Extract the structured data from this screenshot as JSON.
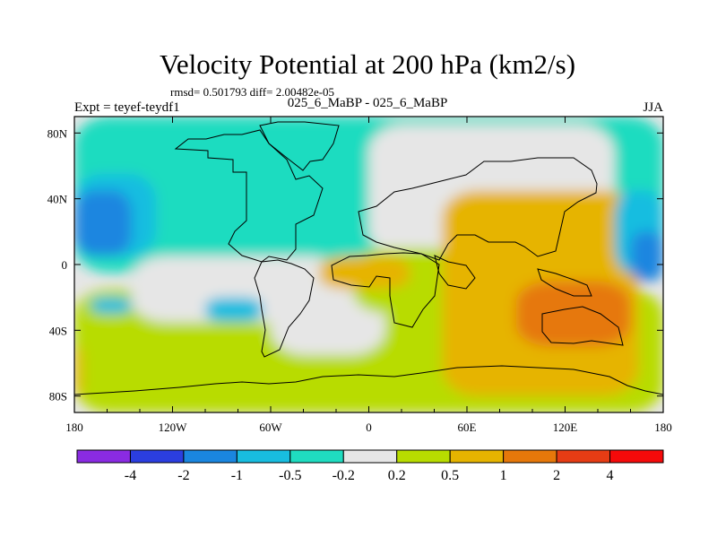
{
  "chart_data": {
    "type": "heatmap",
    "title": "Velocity Potential at 200 hPa (km2/s)",
    "stats": "rmsd= 0.501793 diff= 2.00482e-05",
    "left_label": "Expt = teyef-teydf1",
    "center_label": "025_6_MaBP - 025_6_MaBP",
    "season": "JJA",
    "xlabel": "",
    "ylabel": "",
    "xlim": [
      -180,
      180
    ],
    "ylim": [
      -90,
      90
    ],
    "x_ticks": [
      {
        "value": -180,
        "label": "180"
      },
      {
        "value": -120,
        "label": "120W"
      },
      {
        "value": -60,
        "label": "60W"
      },
      {
        "value": 0,
        "label": "0"
      },
      {
        "value": 60,
        "label": "60E"
      },
      {
        "value": 120,
        "label": "120E"
      },
      {
        "value": 180,
        "label": "180"
      }
    ],
    "y_ticks": [
      {
        "value": 80,
        "label": "80N"
      },
      {
        "value": 40,
        "label": "40N"
      },
      {
        "value": 0,
        "label": "0"
      },
      {
        "value": -40,
        "label": "40S"
      },
      {
        "value": -80,
        "label": "80S"
      }
    ],
    "levels": [
      -4,
      -2,
      -1,
      -0.5,
      -0.2,
      0.2,
      0.5,
      1,
      2,
      4
    ],
    "level_labels": [
      "-4",
      "-2",
      "-1",
      "-0.5",
      "-0.2",
      "0.2",
      "0.5",
      "1",
      "2",
      "4"
    ],
    "colors": [
      "#8a2be2",
      "#2b3ee0",
      "#1a86e0",
      "#18bde0",
      "#1fdcc0",
      "#e6e6e6",
      "#b8dc00",
      "#e6b400",
      "#e6780a",
      "#e63c14",
      "#f50a0a"
    ],
    "regions": [
      {
        "name": "south-tropical-band",
        "level_index": 6,
        "lon": [
          -180,
          180
        ],
        "lat": [
          -90,
          -15
        ]
      },
      {
        "name": "north-high-latitude",
        "level_index": 4,
        "lon": [
          -180,
          180
        ],
        "lat": [
          -5,
          90
        ]
      },
      {
        "name": "pacific-east-band",
        "level_index": 5,
        "lon": [
          -145,
          -15
        ],
        "lat": [
          -35,
          5
        ]
      },
      {
        "name": "atlantic-arc",
        "level_index": 5,
        "lon": [
          -60,
          10
        ],
        "lat": [
          -55,
          -10
        ]
      },
      {
        "name": "asia-neutral",
        "level_index": 5,
        "lon": [
          0,
          150
        ],
        "lat": [
          5,
          85
        ]
      },
      {
        "name": "arabia-positive",
        "level_index": 6,
        "lon": [
          -10,
          60
        ],
        "lat": [
          -30,
          10
        ]
      },
      {
        "name": "sahara-orange",
        "level_index": 7,
        "lon": [
          -30,
          25
        ],
        "lat": [
          -15,
          5
        ]
      },
      {
        "name": "maritime-continent",
        "level_index": 7,
        "lon": [
          45,
          165
        ],
        "lat": [
          -80,
          45
        ]
      },
      {
        "name": "indo-pacific-core",
        "level_index": 8,
        "lon": [
          90,
          160
        ],
        "lat": [
          -50,
          -10
        ]
      },
      {
        "name": "north-pacific-low",
        "level_index": 3,
        "lon": [
          150,
          180
        ],
        "lat": [
          -5,
          45
        ]
      },
      {
        "name": "north-pacific-core",
        "level_index": 2,
        "lon": [
          160,
          180
        ],
        "lat": [
          -10,
          20
        ]
      },
      {
        "name": "west-pacific-low",
        "level_index": 3,
        "lon": [
          -180,
          -130
        ],
        "lat": [
          5,
          55
        ]
      },
      {
        "name": "west-pacific-core",
        "level_index": 2,
        "lon": [
          -180,
          -145
        ],
        "lat": [
          5,
          45
        ]
      },
      {
        "name": "east-pacific-south-low",
        "level_index": 3,
        "lon": [
          -170,
          -145
        ],
        "lat": [
          -30,
          -20
        ]
      },
      {
        "name": "south-atlantic-low",
        "level_index": 3,
        "lon": [
          -100,
          -65
        ],
        "lat": [
          -35,
          -20
        ]
      },
      {
        "name": "far-west-orange",
        "level_index": 7,
        "lon": [
          -180,
          -175
        ],
        "lat": [
          -80,
          -50
        ]
      }
    ]
  }
}
